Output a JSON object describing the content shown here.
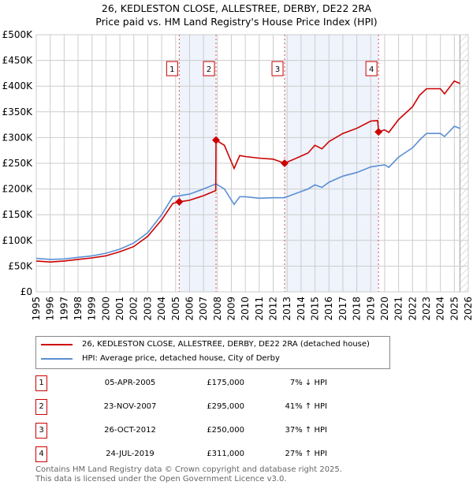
{
  "title_line1": "26, KEDLESTON CLOSE, ALLESTREE, DERBY, DE22 2RA",
  "title_line2": "Price paid vs. HM Land Registry's House Price Index (HPI)",
  "chart_data": {
    "type": "line",
    "xlim": [
      1995,
      2026
    ],
    "ylim": [
      0,
      500000
    ],
    "yticks": [
      0,
      50000,
      100000,
      150000,
      200000,
      250000,
      300000,
      350000,
      400000,
      450000,
      500000
    ],
    "ytick_labels": [
      "£0",
      "£50K",
      "£100K",
      "£150K",
      "£200K",
      "£250K",
      "£300K",
      "£350K",
      "£400K",
      "£450K",
      "£500K"
    ],
    "xticks": [
      1995,
      1996,
      1997,
      1998,
      1999,
      2000,
      2001,
      2002,
      2003,
      2004,
      2005,
      2006,
      2007,
      2008,
      2009,
      2010,
      2011,
      2012,
      2013,
      2014,
      2015,
      2016,
      2017,
      2018,
      2019,
      2020,
      2021,
      2022,
      2023,
      2024,
      2025,
      2026
    ],
    "grid": true,
    "forecast_hatch_from": 2025.4,
    "shaded_ranges": [
      [
        2005.26,
        2007.9
      ],
      [
        2012.82,
        2019.56
      ]
    ],
    "series": [
      {
        "name": "26, KEDLESTON CLOSE, ALLESTREE, DERBY, DE22 2RA (detached house)",
        "color": "#cc0000",
        "x": [
          1995,
          1996,
          1997,
          1998,
          1999,
          2000,
          2001,
          2002,
          2003,
          2004,
          2004.8,
          2005.26,
          2006,
          2007,
          2007.88,
          2007.9,
          2008.5,
          2009.2,
          2009.6,
          2010,
          2011,
          2012,
          2012.82,
          2013.5,
          2014.5,
          2015,
          2015.5,
          2016,
          2017,
          2018,
          2019,
          2019.5,
          2019.56,
          2020,
          2020.3,
          2021,
          2022,
          2022.5,
          2023,
          2024,
          2024.3,
          2025,
          2025.4
        ],
        "y": [
          60000,
          58000,
          60000,
          63000,
          66000,
          70000,
          78000,
          88000,
          108000,
          140000,
          172000,
          175000,
          178000,
          187000,
          197000,
          295000,
          285000,
          240000,
          265000,
          263000,
          260000,
          258000,
          250000,
          258000,
          270000,
          285000,
          278000,
          292000,
          308000,
          318000,
          332000,
          333000,
          311000,
          315000,
          310000,
          335000,
          360000,
          382000,
          395000,
          395000,
          385000,
          410000,
          405000
        ]
      },
      {
        "name": "HPI: Average price, detached house, City of Derby",
        "color": "#5b8fd4",
        "x": [
          1995,
          1996,
          1997,
          1998,
          1999,
          2000,
          2001,
          2002,
          2003,
          2004,
          2004.8,
          2005.3,
          2006,
          2007,
          2007.9,
          2008.5,
          2009.2,
          2009.6,
          2010,
          2011,
          2012,
          2012.8,
          2013.5,
          2014.5,
          2015,
          2015.5,
          2016,
          2017,
          2018,
          2019,
          2019.5,
          2020,
          2020.3,
          2021,
          2022,
          2022.5,
          2023,
          2024,
          2024.3,
          2025,
          2025.4
        ],
        "y": [
          65000,
          63000,
          64000,
          67000,
          70000,
          75000,
          83000,
          95000,
          115000,
          150000,
          185000,
          187000,
          190000,
          200000,
          210000,
          200000,
          170000,
          185000,
          185000,
          182000,
          183000,
          183000,
          190000,
          200000,
          208000,
          203000,
          213000,
          225000,
          232000,
          243000,
          245000,
          247000,
          242000,
          262000,
          280000,
          295000,
          308000,
          308000,
          302000,
          322000,
          318000
        ]
      }
    ],
    "sales": [
      {
        "label": "1",
        "x": 2005.26,
        "y": 175000
      },
      {
        "label": "2",
        "x": 2007.9,
        "y": 295000
      },
      {
        "label": "3",
        "x": 2012.82,
        "y": 250000
      },
      {
        "label": "4",
        "x": 2019.56,
        "y": 311000
      }
    ]
  },
  "legend": {
    "property": "26, KEDLESTON CLOSE, ALLESTREE, DERBY, DE22 2RA (detached house)",
    "hpi": "HPI: Average price, detached house, City of Derby"
  },
  "transactions": [
    {
      "num": "1",
      "date": "05-APR-2005",
      "price": "£175,000",
      "pct": "7% ↓ HPI"
    },
    {
      "num": "2",
      "date": "23-NOV-2007",
      "price": "£295,000",
      "pct": "41% ↑ HPI"
    },
    {
      "num": "3",
      "date": "26-OCT-2012",
      "price": "£250,000",
      "pct": "37% ↑ HPI"
    },
    {
      "num": "4",
      "date": "24-JUL-2019",
      "price": "£311,000",
      "pct": "27% ↑ HPI"
    }
  ],
  "footer_line1": "Contains HM Land Registry data © Crown copyright and database right 2025.",
  "footer_line2": "This data is licensed under the Open Government Licence v3.0."
}
